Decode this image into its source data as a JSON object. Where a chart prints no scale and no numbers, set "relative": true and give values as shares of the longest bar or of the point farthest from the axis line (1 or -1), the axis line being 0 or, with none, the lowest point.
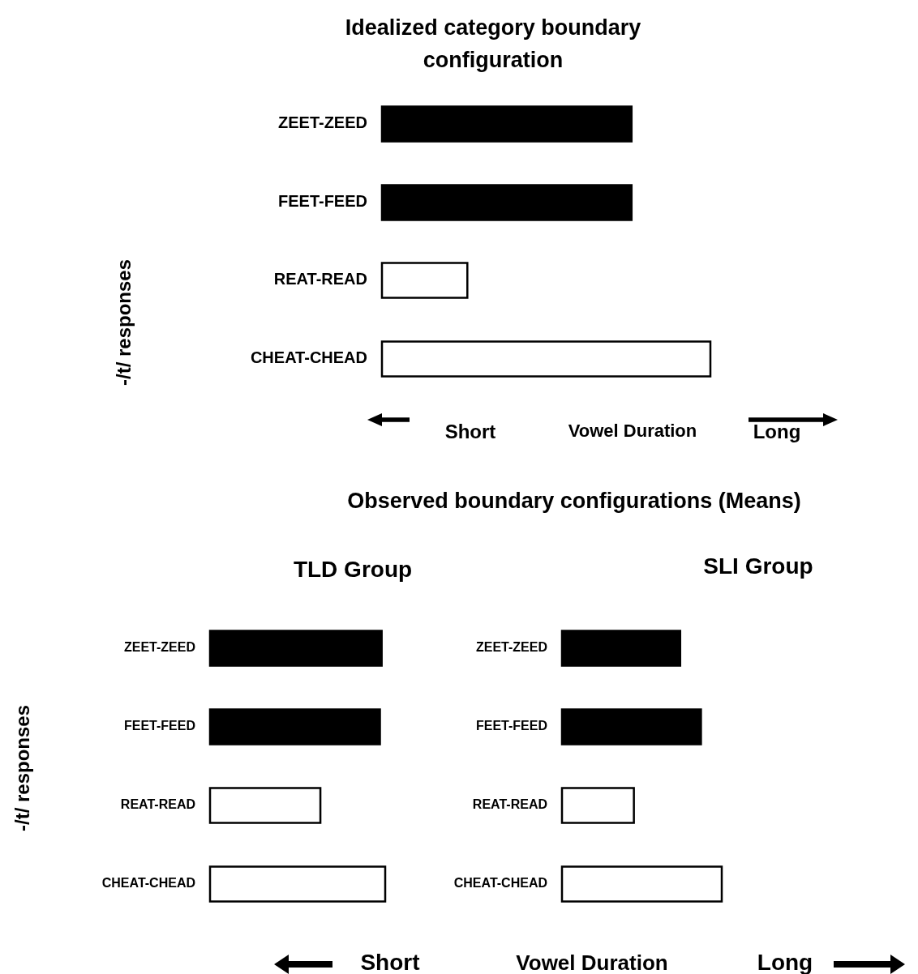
{
  "chart_data": [
    {
      "type": "bar",
      "orientation": "horizontal",
      "relative": true,
      "title": "Idealized category boundary configuration",
      "ylabel": "-/t/ responses",
      "xlabel": "Vowel Duration",
      "annotations": [
        "Short",
        "Long"
      ],
      "categories": [
        "ZEET-ZEED",
        "FEET-FEED",
        "REAT-READ",
        "CHEAT-CHEAD"
      ],
      "values": [
        0.76,
        0.76,
        0.26,
        1
      ],
      "colors": [
        "#000000",
        "#000000",
        "#ffffff",
        "#ffffff"
      ]
    },
    {
      "type": "bar",
      "orientation": "horizontal",
      "relative": true,
      "title": "Observed boundary configurations (Means)",
      "subtitle": "TLD Group",
      "ylabel": "-/t/ responses",
      "annotations": [
        "Short"
      ],
      "categories": [
        "ZEET-ZEED",
        "FEET-FEED",
        "REAT-READ",
        "CHEAT-CHEAD"
      ],
      "values": [
        0.98,
        0.97,
        0.63,
        1
      ],
      "colors": [
        "#000000",
        "#000000",
        "#ffffff",
        "#ffffff"
      ]
    },
    {
      "type": "bar",
      "orientation": "horizontal",
      "relative": true,
      "subtitle": "SLI Group",
      "xlabel": "Vowel Duration",
      "annotations": [
        "Long"
      ],
      "categories": [
        "ZEET-ZEED",
        "FEET-FEED",
        "REAT-READ",
        "CHEAT-CHEAD"
      ],
      "values": [
        0.74,
        0.87,
        0.45,
        1
      ],
      "colors": [
        "#000000",
        "#000000",
        "#ffffff",
        "#ffffff"
      ]
    }
  ]
}
